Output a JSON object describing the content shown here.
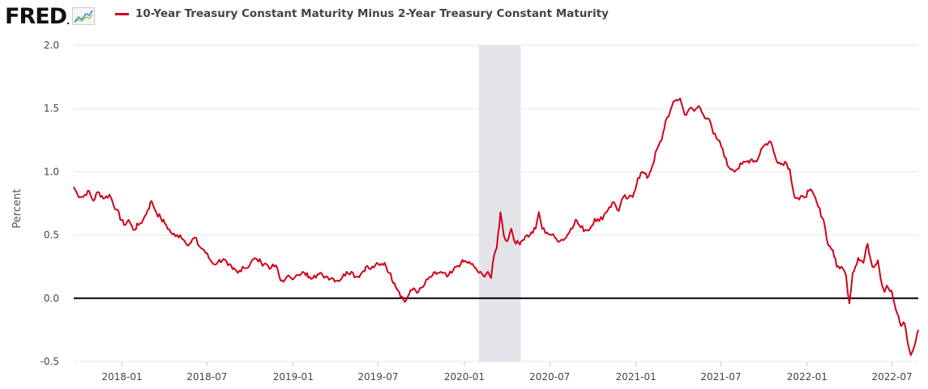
{
  "logo": {
    "text": "FRED",
    "icon": "trend-chart-icon"
  },
  "colors": {
    "series": "#d0021b",
    "recession": "#e3e3e8",
    "zero_line": "#000000",
    "grid": "#e6e6e6"
  },
  "chart_data": {
    "type": "line",
    "title": "",
    "ylabel": "Percent",
    "xlabel": "",
    "ylim": [
      -0.5,
      2.0
    ],
    "xlim": [
      "2017-09-20",
      "2022-08-26"
    ],
    "y_ticks": [
      "2.0",
      "1.5",
      "1.0",
      "0.5",
      "0.0",
      "-0.5"
    ],
    "x_ticks": [
      "2018-01",
      "2018-07",
      "2019-01",
      "2019-07",
      "2020-01",
      "2020-07",
      "2021-01",
      "2021-07",
      "2022-01",
      "2022-07"
    ],
    "grid": true,
    "reference_line": 0.0,
    "recession_shading": {
      "start": "2020-02-01",
      "end": "2020-04-30"
    },
    "series": [
      {
        "name": "10-Year Treasury Constant Maturity Minus 2-Year Treasury Constant Maturity",
        "points": [
          [
            "2017-09-20",
            0.88
          ],
          [
            "2017-09-28",
            0.82
          ],
          [
            "2017-10-10",
            0.8
          ],
          [
            "2017-10-20",
            0.85
          ],
          [
            "2017-11-01",
            0.77
          ],
          [
            "2017-11-10",
            0.84
          ],
          [
            "2017-11-25",
            0.79
          ],
          [
            "2017-12-05",
            0.82
          ],
          [
            "2017-12-20",
            0.7
          ],
          [
            "2018-01-05",
            0.58
          ],
          [
            "2018-01-15",
            0.62
          ],
          [
            "2018-01-25",
            0.54
          ],
          [
            "2018-02-05",
            0.58
          ],
          [
            "2018-02-15",
            0.62
          ],
          [
            "2018-02-25",
            0.7
          ],
          [
            "2018-03-05",
            0.77
          ],
          [
            "2018-03-15",
            0.68
          ],
          [
            "2018-03-25",
            0.63
          ],
          [
            "2018-04-05",
            0.58
          ],
          [
            "2018-04-15",
            0.52
          ],
          [
            "2018-04-25",
            0.49
          ],
          [
            "2018-05-05",
            0.5
          ],
          [
            "2018-05-15",
            0.45
          ],
          [
            "2018-05-25",
            0.43
          ],
          [
            "2018-06-05",
            0.48
          ],
          [
            "2018-06-15",
            0.41
          ],
          [
            "2018-06-25",
            0.38
          ],
          [
            "2018-07-05",
            0.32
          ],
          [
            "2018-07-15",
            0.27
          ],
          [
            "2018-07-25",
            0.29
          ],
          [
            "2018-08-05",
            0.31
          ],
          [
            "2018-08-15",
            0.26
          ],
          [
            "2018-08-25",
            0.23
          ],
          [
            "2018-09-05",
            0.2
          ],
          [
            "2018-09-15",
            0.25
          ],
          [
            "2018-09-25",
            0.24
          ],
          [
            "2018-10-05",
            0.3
          ],
          [
            "2018-10-15",
            0.31
          ],
          [
            "2018-10-25",
            0.28
          ],
          [
            "2018-11-05",
            0.27
          ],
          [
            "2018-11-15",
            0.24
          ],
          [
            "2018-11-25",
            0.26
          ],
          [
            "2018-12-05",
            0.14
          ],
          [
            "2018-12-15",
            0.15
          ],
          [
            "2018-12-25",
            0.17
          ],
          [
            "2019-01-05",
            0.17
          ],
          [
            "2019-01-15",
            0.18
          ],
          [
            "2019-01-25",
            0.2
          ],
          [
            "2019-02-05",
            0.17
          ],
          [
            "2019-02-15",
            0.18
          ],
          [
            "2019-02-25",
            0.19
          ],
          [
            "2019-03-05",
            0.18
          ],
          [
            "2019-03-15",
            0.17
          ],
          [
            "2019-03-25",
            0.16
          ],
          [
            "2019-04-05",
            0.14
          ],
          [
            "2019-04-15",
            0.16
          ],
          [
            "2019-04-25",
            0.21
          ],
          [
            "2019-05-05",
            0.21
          ],
          [
            "2019-05-15",
            0.17
          ],
          [
            "2019-05-25",
            0.19
          ],
          [
            "2019-06-05",
            0.25
          ],
          [
            "2019-06-15",
            0.23
          ],
          [
            "2019-06-25",
            0.26
          ],
          [
            "2019-07-05",
            0.26
          ],
          [
            "2019-07-15",
            0.28
          ],
          [
            "2019-07-25",
            0.2
          ],
          [
            "2019-08-05",
            0.12
          ],
          [
            "2019-08-15",
            0.05
          ],
          [
            "2019-08-27",
            -0.03
          ],
          [
            "2019-09-05",
            0.03
          ],
          [
            "2019-09-15",
            0.08
          ],
          [
            "2019-09-25",
            0.05
          ],
          [
            "2019-10-05",
            0.09
          ],
          [
            "2019-10-15",
            0.15
          ],
          [
            "2019-10-25",
            0.18
          ],
          [
            "2019-11-05",
            0.2
          ],
          [
            "2019-11-15",
            0.2
          ],
          [
            "2019-11-25",
            0.17
          ],
          [
            "2019-12-05",
            0.2
          ],
          [
            "2019-12-15",
            0.25
          ],
          [
            "2019-12-25",
            0.28
          ],
          [
            "2020-01-05",
            0.29
          ],
          [
            "2020-01-15",
            0.27
          ],
          [
            "2020-01-25",
            0.24
          ],
          [
            "2020-02-01",
            0.2
          ],
          [
            "2020-02-10",
            0.18
          ],
          [
            "2020-02-20",
            0.21
          ],
          [
            "2020-02-27",
            0.16
          ],
          [
            "2020-03-05",
            0.35
          ],
          [
            "2020-03-10",
            0.4
          ],
          [
            "2020-03-18",
            0.68
          ],
          [
            "2020-03-25",
            0.5
          ],
          [
            "2020-04-01",
            0.45
          ],
          [
            "2020-04-10",
            0.55
          ],
          [
            "2020-04-20",
            0.43
          ],
          [
            "2020-05-01",
            0.45
          ],
          [
            "2020-05-10",
            0.49
          ],
          [
            "2020-05-20",
            0.5
          ],
          [
            "2020-06-01",
            0.55
          ],
          [
            "2020-06-08",
            0.68
          ],
          [
            "2020-06-15",
            0.55
          ],
          [
            "2020-06-25",
            0.52
          ],
          [
            "2020-07-05",
            0.5
          ],
          [
            "2020-07-15",
            0.47
          ],
          [
            "2020-07-25",
            0.46
          ],
          [
            "2020-08-05",
            0.48
          ],
          [
            "2020-08-15",
            0.55
          ],
          [
            "2020-08-25",
            0.62
          ],
          [
            "2020-09-05",
            0.56
          ],
          [
            "2020-09-15",
            0.54
          ],
          [
            "2020-09-25",
            0.55
          ],
          [
            "2020-10-05",
            0.63
          ],
          [
            "2020-10-15",
            0.61
          ],
          [
            "2020-10-25",
            0.66
          ],
          [
            "2020-11-05",
            0.72
          ],
          [
            "2020-11-15",
            0.76
          ],
          [
            "2020-11-25",
            0.69
          ],
          [
            "2020-12-05",
            0.8
          ],
          [
            "2020-12-15",
            0.79
          ],
          [
            "2020-12-25",
            0.8
          ],
          [
            "2021-01-05",
            0.95
          ],
          [
            "2021-01-15",
            1.0
          ],
          [
            "2021-01-25",
            0.95
          ],
          [
            "2021-02-05",
            1.05
          ],
          [
            "2021-02-15",
            1.18
          ],
          [
            "2021-02-25",
            1.25
          ],
          [
            "2021-03-05",
            1.4
          ],
          [
            "2021-03-15",
            1.48
          ],
          [
            "2021-03-25",
            1.56
          ],
          [
            "2021-04-05",
            1.58
          ],
          [
            "2021-04-15",
            1.45
          ],
          [
            "2021-04-25",
            1.5
          ],
          [
            "2021-05-05",
            1.48
          ],
          [
            "2021-05-15",
            1.52
          ],
          [
            "2021-05-25",
            1.45
          ],
          [
            "2021-06-05",
            1.42
          ],
          [
            "2021-06-15",
            1.3
          ],
          [
            "2021-06-25",
            1.25
          ],
          [
            "2021-07-05",
            1.18
          ],
          [
            "2021-07-15",
            1.05
          ],
          [
            "2021-07-25",
            1.02
          ],
          [
            "2021-08-05",
            1.02
          ],
          [
            "2021-08-15",
            1.06
          ],
          [
            "2021-08-25",
            1.08
          ],
          [
            "2021-09-05",
            1.1
          ],
          [
            "2021-09-15",
            1.08
          ],
          [
            "2021-09-25",
            1.18
          ],
          [
            "2021-10-05",
            1.22
          ],
          [
            "2021-10-15",
            1.24
          ],
          [
            "2021-10-25",
            1.12
          ],
          [
            "2021-11-05",
            1.06
          ],
          [
            "2021-11-15",
            1.08
          ],
          [
            "2021-11-25",
            1.02
          ],
          [
            "2021-12-05",
            0.8
          ],
          [
            "2021-12-15",
            0.78
          ],
          [
            "2021-12-25",
            0.8
          ],
          [
            "2022-01-05",
            0.85
          ],
          [
            "2022-01-15",
            0.82
          ],
          [
            "2022-01-25",
            0.72
          ],
          [
            "2022-02-05",
            0.62
          ],
          [
            "2022-02-15",
            0.42
          ],
          [
            "2022-02-25",
            0.38
          ],
          [
            "2022-03-05",
            0.25
          ],
          [
            "2022-03-15",
            0.25
          ],
          [
            "2022-03-25",
            0.18
          ],
          [
            "2022-04-01",
            -0.04
          ],
          [
            "2022-04-08",
            0.2
          ],
          [
            "2022-04-20",
            0.32
          ],
          [
            "2022-05-01",
            0.28
          ],
          [
            "2022-05-10",
            0.43
          ],
          [
            "2022-05-20",
            0.25
          ],
          [
            "2022-06-01",
            0.3
          ],
          [
            "2022-06-10",
            0.1
          ],
          [
            "2022-06-15",
            0.05
          ],
          [
            "2022-06-20",
            0.1
          ],
          [
            "2022-06-30",
            0.06
          ],
          [
            "2022-07-06",
            -0.04
          ],
          [
            "2022-07-12",
            -0.12
          ],
          [
            "2022-07-20",
            -0.22
          ],
          [
            "2022-07-28",
            -0.2
          ],
          [
            "2022-08-05",
            -0.38
          ],
          [
            "2022-08-10",
            -0.45
          ],
          [
            "2022-08-15",
            -0.41
          ],
          [
            "2022-08-20",
            -0.35
          ],
          [
            "2022-08-26",
            -0.25
          ]
        ]
      }
    ]
  }
}
